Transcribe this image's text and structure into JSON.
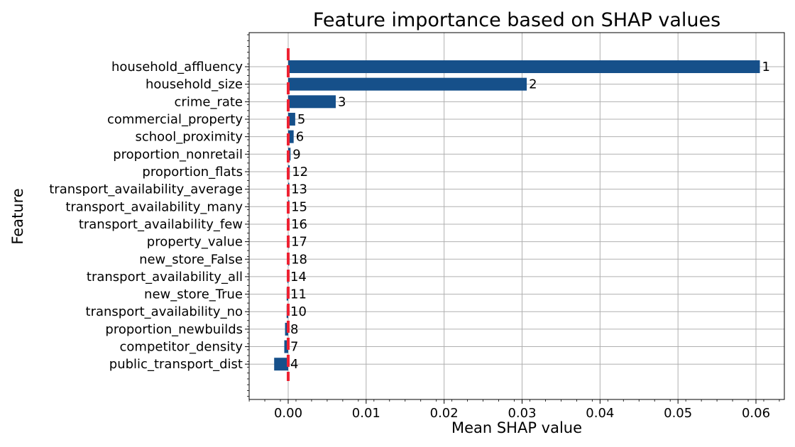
{
  "chart_data": {
    "type": "bar",
    "orientation": "horizontal",
    "title": "Feature importance based on SHAP values",
    "xlabel": "Mean SHAP value",
    "ylabel": "Feature",
    "xlim": [
      -0.005,
      0.0632
    ],
    "xticks": [
      0.0,
      0.01,
      0.02,
      0.03,
      0.04,
      0.05,
      0.06
    ],
    "xtick_labels": [
      "0.00",
      "0.01",
      "0.02",
      "0.03",
      "0.04",
      "0.05",
      "0.06"
    ],
    "grid": true,
    "bar_color": "#16508a",
    "reference_line": {
      "x": 0.0,
      "style": "dashed",
      "color": "#ee2233"
    },
    "categories": [
      "household_affluency",
      "household_size",
      "crime_rate",
      "commercial_property",
      "school_proximity",
      "proportion_nonretail",
      "proportion_flats",
      "transport_availability_average",
      "transport_availability_many",
      "transport_availability_few",
      "property_value",
      "new_store_False",
      "transport_availability_all",
      "new_store_True",
      "transport_availability_no",
      "proportion_newbuilds",
      "competitor_density",
      "public_transport_dist"
    ],
    "values": [
      0.0605,
      0.0306,
      0.0061,
      0.0009,
      0.0007,
      0.0003,
      0.0002,
      0.0001,
      0.0001,
      0.0001,
      0.0001,
      0.0001,
      -0.0001,
      -0.0002,
      -0.0002,
      -0.0004,
      -0.0005,
      -0.0018
    ],
    "labels": [
      "1",
      "2",
      "3",
      "5",
      "6",
      "9",
      "12",
      "13",
      "15",
      "16",
      "17",
      "18",
      "14",
      "11",
      "10",
      "8",
      "7",
      "4"
    ]
  }
}
